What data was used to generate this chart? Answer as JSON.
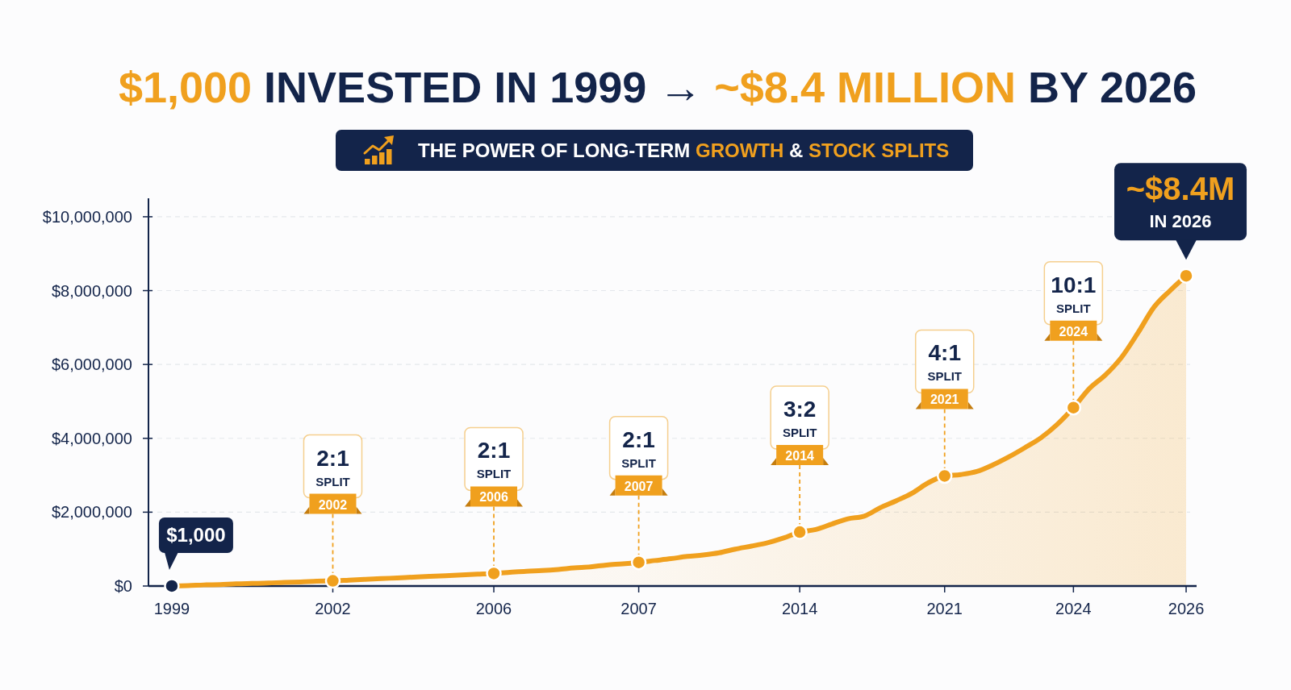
{
  "chart_data": {
    "type": "area",
    "title": "$1,000 INVESTED IN 1999 → ~$8.4 MILLION BY 2026",
    "subtitle": "THE POWER OF LONG-TERM GROWTH & STOCK SPLITS",
    "categories": [
      "1999",
      null,
      null,
      null,
      null,
      null,
      null,
      null,
      null,
      null,
      "2002",
      null,
      null,
      null,
      null,
      null,
      null,
      null,
      null,
      null,
      "2006",
      null,
      null,
      null,
      null,
      null,
      null,
      null,
      null,
      "2007",
      null,
      null,
      null,
      null,
      null,
      null,
      null,
      null,
      null,
      "2014",
      null,
      null,
      null,
      null,
      null,
      null,
      null,
      null,
      "2021",
      null,
      null,
      null,
      null,
      null,
      null,
      null,
      "2024",
      null,
      null,
      null,
      null,
      null,
      null,
      "2026"
    ],
    "series": [
      {
        "color": "#f0a01e",
        "values": [
          1000,
          10000,
          30000,
          40000,
          60000,
          70000,
          80000,
          100000,
          110000,
          130000,
          140000,
          160000,
          180000,
          200000,
          220000,
          240000,
          260000,
          280000,
          300000,
          320000,
          340000,
          370000,
          400000,
          420000,
          450000,
          490000,
          520000,
          570000,
          600000,
          640000,
          690000,
          740000,
          800000,
          840000,
          900000,
          1000000,
          1080000,
          1170000,
          1300000,
          1460000,
          1530000,
          1680000,
          1820000,
          1890000,
          2120000,
          2310000,
          2520000,
          2800000,
          2980000,
          3020000,
          3100000,
          3280000,
          3500000,
          3750000,
          4020000,
          4380000,
          4830000,
          5350000,
          5720000,
          6200000,
          6850000,
          7550000,
          8000000,
          8400000
        ]
      },
      {
        "type": "scatter",
        "marker": "circle",
        "values": [
          1000,
          null,
          null,
          null,
          null,
          null,
          null,
          null,
          null,
          null,
          140000,
          null,
          null,
          null,
          null,
          null,
          null,
          null,
          null,
          null,
          340000,
          null,
          null,
          null,
          null,
          null,
          null,
          null,
          null,
          640000,
          null,
          null,
          null,
          null,
          null,
          null,
          null,
          null,
          null,
          1460000,
          null,
          null,
          null,
          null,
          null,
          null,
          null,
          null,
          2980000,
          null,
          null,
          null,
          null,
          null,
          null,
          null,
          4830000,
          null,
          null,
          null,
          null,
          null,
          null,
          8400000
        ],
        "colors": [
          "#13244a",
          null,
          null,
          null,
          null,
          null,
          null,
          null,
          null,
          null,
          "#f0a01e",
          null,
          null,
          null,
          null,
          null,
          null,
          null,
          null,
          null,
          "#f0a01e",
          null,
          null,
          null,
          null,
          null,
          null,
          null,
          null,
          "#f0a01e",
          null,
          null,
          null,
          null,
          null,
          null,
          null,
          null,
          null,
          "#f0a01e",
          null,
          null,
          null,
          null,
          null,
          null,
          null,
          null,
          "#f0a01e",
          null,
          null,
          null,
          null,
          null,
          null,
          null,
          "#f0a01e",
          null,
          null,
          null,
          null,
          null,
          null,
          "#f0a01e"
        ]
      }
    ],
    "ylim": [
      0,
      10500000
    ],
    "yticks": [
      {
        "value": 0,
        "label": "$0"
      },
      {
        "value": 2000000,
        "label": "$2,000,000"
      },
      {
        "value": 4000000,
        "label": "$4,000,000"
      },
      {
        "value": 6000000,
        "label": "$6,000,000"
      },
      {
        "value": 8000000,
        "label": "$8,000,000"
      },
      {
        "value": 10000000,
        "label": "$10,000,000"
      }
    ],
    "grid": "y",
    "annotations": [
      {
        "text": "$1,000",
        "x": "1999",
        "y": 1000
      },
      {
        "text": "2:1\nSPLIT\n2002",
        "x": "2002",
        "y": 140000
      },
      {
        "text": "2:1\nSPLIT\n2006",
        "x": "2006",
        "y": 340000
      },
      {
        "text": "2:1\nSPLIT\n2007",
        "x": "2007",
        "y": 640000
      },
      {
        "text": "3:2\nSPLIT\n2014",
        "x": "2014",
        "y": 1460000
      },
      {
        "text": "4:1\nSPLIT\n2021",
        "x": "2021",
        "y": 2980000
      },
      {
        "text": "10:1\nSPLIT\n2024",
        "x": "2024",
        "y": 4830000
      },
      {
        "text": "~$8.4M\nIN 2026",
        "x": "2026",
        "y": 8400000
      }
    ]
  }
}
